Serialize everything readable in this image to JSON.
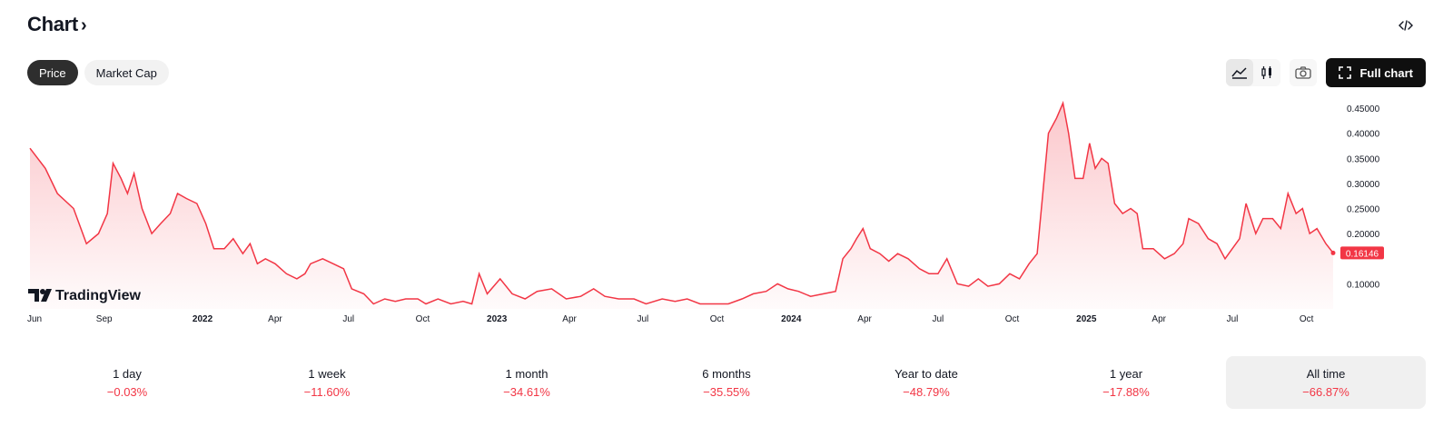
{
  "header": {
    "title": "Chart",
    "chevron": "›"
  },
  "tabs": [
    {
      "label": "Price",
      "active": true
    },
    {
      "label": "Market Cap",
      "active": false
    }
  ],
  "toolbar": {
    "full_chart_label": "Full chart",
    "icons": [
      "area-chart-icon",
      "candles-icon",
      "camera-icon",
      "fullscreen-icon",
      "code-icon"
    ]
  },
  "watermark": {
    "label": "TradingView"
  },
  "colors": {
    "line": "#f23645",
    "accent_dark": "#0f0f0f",
    "negative": "#f23645"
  },
  "chart_data": {
    "type": "area",
    "last_price_label": "0.16146",
    "ylim": [
      0.05,
      0.47
    ],
    "y_ticks": [
      "0.45000",
      "0.40000",
      "0.35000",
      "0.30000",
      "0.25000",
      "0.20000",
      "0.10000"
    ],
    "y_tick_values": [
      0.45,
      0.4,
      0.35,
      0.3,
      0.25,
      0.2,
      0.1
    ],
    "x_labels": [
      {
        "label": "Jun",
        "bold": false
      },
      {
        "label": "Sep",
        "bold": false
      },
      {
        "label": "2022",
        "bold": true
      },
      {
        "label": "Apr",
        "bold": false
      },
      {
        "label": "Jul",
        "bold": false
      },
      {
        "label": "Oct",
        "bold": false
      },
      {
        "label": "2023",
        "bold": true
      },
      {
        "label": "Apr",
        "bold": false
      },
      {
        "label": "Jul",
        "bold": false
      },
      {
        "label": "Oct",
        "bold": false
      },
      {
        "label": "2024",
        "bold": true
      },
      {
        "label": "Apr",
        "bold": false
      },
      {
        "label": "Jul",
        "bold": false
      },
      {
        "label": "Oct",
        "bold": false
      },
      {
        "label": "2025",
        "bold": true
      },
      {
        "label": "Apr",
        "bold": false
      },
      {
        "label": "Jul",
        "bold": false
      },
      {
        "label": "Oct",
        "bold": false
      }
    ],
    "x_range": [
      "2021-06",
      "2025-11"
    ],
    "points": [
      [
        "2021-06-01",
        0.37
      ],
      [
        "2021-06-20",
        0.33
      ],
      [
        "2021-07-05",
        0.28
      ],
      [
        "2021-07-25",
        0.25
      ],
      [
        "2021-08-10",
        0.18
      ],
      [
        "2021-08-25",
        0.2
      ],
      [
        "2021-09-05",
        0.24
      ],
      [
        "2021-09-12",
        0.34
      ],
      [
        "2021-09-22",
        0.31
      ],
      [
        "2021-09-30",
        0.28
      ],
      [
        "2021-10-08",
        0.32
      ],
      [
        "2021-10-18",
        0.25
      ],
      [
        "2021-10-30",
        0.2
      ],
      [
        "2021-11-10",
        0.22
      ],
      [
        "2021-11-22",
        0.24
      ],
      [
        "2021-12-01",
        0.28
      ],
      [
        "2021-12-12",
        0.27
      ],
      [
        "2021-12-25",
        0.26
      ],
      [
        "2022-01-05",
        0.22
      ],
      [
        "2022-01-15",
        0.17
      ],
      [
        "2022-01-28",
        0.17
      ],
      [
        "2022-02-08",
        0.19
      ],
      [
        "2022-02-20",
        0.16
      ],
      [
        "2022-03-01",
        0.18
      ],
      [
        "2022-03-10",
        0.14
      ],
      [
        "2022-03-20",
        0.15
      ],
      [
        "2022-04-01",
        0.14
      ],
      [
        "2022-04-15",
        0.12
      ],
      [
        "2022-04-28",
        0.11
      ],
      [
        "2022-05-08",
        0.12
      ],
      [
        "2022-05-15",
        0.14
      ],
      [
        "2022-05-30",
        0.15
      ],
      [
        "2022-06-12",
        0.14
      ],
      [
        "2022-06-25",
        0.13
      ],
      [
        "2022-07-05",
        0.09
      ],
      [
        "2022-07-20",
        0.08
      ],
      [
        "2022-08-01",
        0.06
      ],
      [
        "2022-08-15",
        0.07
      ],
      [
        "2022-08-28",
        0.065
      ],
      [
        "2022-09-10",
        0.07
      ],
      [
        "2022-09-25",
        0.07
      ],
      [
        "2022-10-05",
        0.06
      ],
      [
        "2022-10-20",
        0.07
      ],
      [
        "2022-11-05",
        0.06
      ],
      [
        "2022-11-20",
        0.065
      ],
      [
        "2022-12-01",
        0.06
      ],
      [
        "2022-12-10",
        0.12
      ],
      [
        "2022-12-20",
        0.08
      ],
      [
        "2023-01-05",
        0.11
      ],
      [
        "2023-01-20",
        0.08
      ],
      [
        "2023-02-05",
        0.07
      ],
      [
        "2023-02-20",
        0.085
      ],
      [
        "2023-03-10",
        0.09
      ],
      [
        "2023-03-28",
        0.07
      ],
      [
        "2023-04-15",
        0.075
      ],
      [
        "2023-05-01",
        0.09
      ],
      [
        "2023-05-15",
        0.075
      ],
      [
        "2023-06-01",
        0.07
      ],
      [
        "2023-06-20",
        0.07
      ],
      [
        "2023-07-05",
        0.06
      ],
      [
        "2023-07-25",
        0.07
      ],
      [
        "2023-08-10",
        0.065
      ],
      [
        "2023-08-25",
        0.07
      ],
      [
        "2023-09-10",
        0.06
      ],
      [
        "2023-09-28",
        0.06
      ],
      [
        "2023-10-15",
        0.06
      ],
      [
        "2023-11-01",
        0.07
      ],
      [
        "2023-11-15",
        0.08
      ],
      [
        "2023-12-01",
        0.085
      ],
      [
        "2023-12-15",
        0.1
      ],
      [
        "2023-12-28",
        0.09
      ],
      [
        "2024-01-10",
        0.085
      ],
      [
        "2024-01-25",
        0.075
      ],
      [
        "2024-02-10",
        0.08
      ],
      [
        "2024-02-25",
        0.085
      ],
      [
        "2024-03-05",
        0.15
      ],
      [
        "2024-03-15",
        0.17
      ],
      [
        "2024-03-22",
        0.19
      ],
      [
        "2024-03-30",
        0.21
      ],
      [
        "2024-04-08",
        0.17
      ],
      [
        "2024-04-20",
        0.16
      ],
      [
        "2024-05-01",
        0.145
      ],
      [
        "2024-05-12",
        0.16
      ],
      [
        "2024-05-25",
        0.15
      ],
      [
        "2024-06-08",
        0.13
      ],
      [
        "2024-06-20",
        0.12
      ],
      [
        "2024-07-01",
        0.12
      ],
      [
        "2024-07-12",
        0.15
      ],
      [
        "2024-07-25",
        0.1
      ],
      [
        "2024-08-08",
        0.095
      ],
      [
        "2024-08-20",
        0.11
      ],
      [
        "2024-09-01",
        0.095
      ],
      [
        "2024-09-15",
        0.1
      ],
      [
        "2024-09-28",
        0.12
      ],
      [
        "2024-10-10",
        0.11
      ],
      [
        "2024-10-22",
        0.14
      ],
      [
        "2024-11-01",
        0.16
      ],
      [
        "2024-11-08",
        0.28
      ],
      [
        "2024-11-15",
        0.4
      ],
      [
        "2024-11-25",
        0.43
      ],
      [
        "2024-12-03",
        0.46
      ],
      [
        "2024-12-10",
        0.4
      ],
      [
        "2024-12-18",
        0.31
      ],
      [
        "2024-12-28",
        0.31
      ],
      [
        "2025-01-05",
        0.38
      ],
      [
        "2025-01-12",
        0.33
      ],
      [
        "2025-01-20",
        0.35
      ],
      [
        "2025-01-28",
        0.34
      ],
      [
        "2025-02-05",
        0.26
      ],
      [
        "2025-02-15",
        0.24
      ],
      [
        "2025-02-25",
        0.25
      ],
      [
        "2025-03-05",
        0.24
      ],
      [
        "2025-03-12",
        0.17
      ],
      [
        "2025-03-25",
        0.17
      ],
      [
        "2025-04-08",
        0.15
      ],
      [
        "2025-04-20",
        0.16
      ],
      [
        "2025-05-01",
        0.18
      ],
      [
        "2025-05-08",
        0.23
      ],
      [
        "2025-05-20",
        0.22
      ],
      [
        "2025-06-01",
        0.19
      ],
      [
        "2025-06-12",
        0.18
      ],
      [
        "2025-06-22",
        0.15
      ],
      [
        "2025-07-01",
        0.17
      ],
      [
        "2025-07-10",
        0.19
      ],
      [
        "2025-07-18",
        0.26
      ],
      [
        "2025-07-30",
        0.2
      ],
      [
        "2025-08-08",
        0.23
      ],
      [
        "2025-08-20",
        0.23
      ],
      [
        "2025-08-30",
        0.21
      ],
      [
        "2025-09-08",
        0.28
      ],
      [
        "2025-09-18",
        0.24
      ],
      [
        "2025-09-26",
        0.25
      ],
      [
        "2025-10-05",
        0.2
      ],
      [
        "2025-10-14",
        0.21
      ],
      [
        "2025-10-25",
        0.18
      ],
      [
        "2025-11-03",
        0.16146
      ]
    ]
  },
  "performance": [
    {
      "label": "1 day",
      "value": "−0.03%",
      "active": false
    },
    {
      "label": "1 week",
      "value": "−11.60%",
      "active": false
    },
    {
      "label": "1 month",
      "value": "−34.61%",
      "active": false
    },
    {
      "label": "6 months",
      "value": "−35.55%",
      "active": false
    },
    {
      "label": "Year to date",
      "value": "−48.79%",
      "active": false
    },
    {
      "label": "1 year",
      "value": "−17.88%",
      "active": false
    },
    {
      "label": "All time",
      "value": "−66.87%",
      "active": true
    }
  ]
}
